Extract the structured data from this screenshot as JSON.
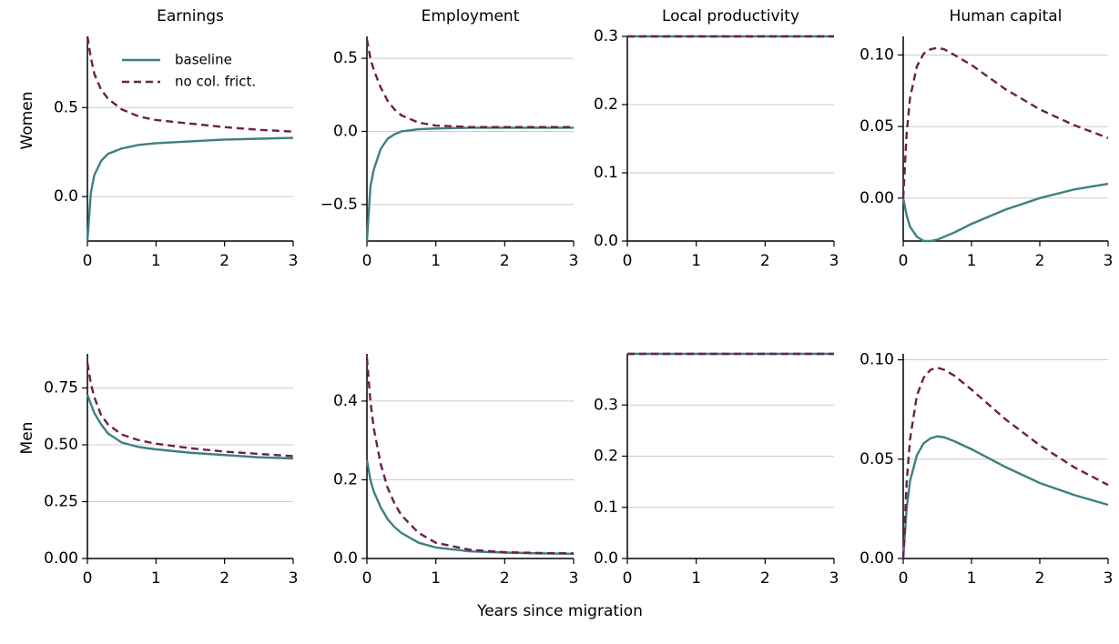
{
  "figure": {
    "xlabel": "Years since migration",
    "legend": [
      {
        "label": "baseline",
        "style": "solid",
        "color": "#3f7f7f"
      },
      {
        "label": "no col. frict.",
        "style": "dashed",
        "color": "#6d1f4b"
      }
    ],
    "legend_placement": "upper-center of top-left panel",
    "grid": "horizontal",
    "column_titles": [
      "Earnings",
      "Employment",
      "Local productivity",
      "Human capital"
    ],
    "row_labels": [
      "Women",
      "Men"
    ]
  },
  "chart_data": [
    {
      "type": "line",
      "title": "Earnings",
      "row_label": "Women",
      "xlim": [
        0,
        3
      ],
      "ylim": [
        -0.25,
        0.9
      ],
      "xticks": [
        0,
        1,
        2,
        3
      ],
      "yticks": [
        0.0,
        0.5
      ],
      "ytick_labels": [
        "0.0",
        "0.5"
      ],
      "series": [
        {
          "name": "baseline",
          "x": [
            0,
            0.05,
            0.1,
            0.2,
            0.3,
            0.5,
            0.75,
            1,
            1.5,
            2,
            2.5,
            3
          ],
          "y": [
            -0.25,
            0.02,
            0.12,
            0.2,
            0.24,
            0.27,
            0.29,
            0.3,
            0.31,
            0.32,
            0.325,
            0.33
          ]
        },
        {
          "name": "no col. frict.",
          "x": [
            0,
            0.05,
            0.1,
            0.2,
            0.3,
            0.5,
            0.75,
            1,
            1.5,
            2,
            2.5,
            3
          ],
          "y": [
            0.9,
            0.78,
            0.69,
            0.6,
            0.55,
            0.49,
            0.45,
            0.43,
            0.41,
            0.39,
            0.375,
            0.365
          ]
        }
      ]
    },
    {
      "type": "line",
      "title": "Employment",
      "row_label": "Women",
      "xlim": [
        0,
        3
      ],
      "ylim": [
        -0.75,
        0.65
      ],
      "xticks": [
        0,
        1,
        2,
        3
      ],
      "yticks": [
        -0.5,
        0.0,
        0.5
      ],
      "ytick_labels": [
        "−0.5",
        "0.0",
        "0.5"
      ],
      "series": [
        {
          "name": "baseline",
          "x": [
            0,
            0.05,
            0.1,
            0.2,
            0.3,
            0.4,
            0.5,
            0.75,
            1,
            1.5,
            2,
            2.5,
            3
          ],
          "y": [
            -0.75,
            -0.38,
            -0.26,
            -0.12,
            -0.05,
            -0.02,
            0.0,
            0.015,
            0.02,
            0.025,
            0.025,
            0.025,
            0.025
          ]
        },
        {
          "name": "no col. frict.",
          "x": [
            0,
            0.05,
            0.1,
            0.2,
            0.3,
            0.4,
            0.5,
            0.75,
            1,
            1.5,
            2,
            2.5,
            3
          ],
          "y": [
            0.63,
            0.5,
            0.42,
            0.3,
            0.21,
            0.15,
            0.11,
            0.06,
            0.04,
            0.03,
            0.03,
            0.03,
            0.03
          ]
        }
      ]
    },
    {
      "type": "line",
      "title": "Local productivity",
      "row_label": "Women",
      "xlim": [
        0,
        3
      ],
      "ylim": [
        0,
        0.3
      ],
      "xticks": [
        0,
        1,
        2,
        3
      ],
      "yticks": [
        0.0,
        0.1,
        0.2,
        0.3
      ],
      "ytick_labels": [
        "0.0",
        "0.1",
        "0.2",
        "0.3"
      ],
      "series": [
        {
          "name": "baseline",
          "x": [
            0,
            3
          ],
          "y": [
            0.3,
            0.3
          ]
        },
        {
          "name": "no col. frict.",
          "x": [
            0,
            3
          ],
          "y": [
            0.3,
            0.3
          ]
        }
      ]
    },
    {
      "type": "line",
      "title": "Human capital",
      "row_label": "Women",
      "xlim": [
        0,
        3
      ],
      "ylim": [
        -0.03,
        0.113
      ],
      "xticks": [
        0,
        1,
        2,
        3
      ],
      "yticks": [
        0.0,
        0.05,
        0.1
      ],
      "ytick_labels": [
        "0.00",
        "0.05",
        "0.10"
      ],
      "series": [
        {
          "name": "baseline",
          "x": [
            0,
            0.05,
            0.1,
            0.2,
            0.3,
            0.4,
            0.5,
            0.75,
            1,
            1.5,
            2,
            2.5,
            3
          ],
          "y": [
            0.0,
            -0.012,
            -0.02,
            -0.027,
            -0.03,
            -0.03,
            -0.029,
            -0.024,
            -0.018,
            -0.008,
            0.0,
            0.006,
            0.01
          ]
        },
        {
          "name": "no col. frict.",
          "x": [
            0,
            0.05,
            0.1,
            0.2,
            0.3,
            0.4,
            0.5,
            0.6,
            0.75,
            1,
            1.5,
            2,
            2.5,
            3
          ],
          "y": [
            0.0,
            0.045,
            0.07,
            0.092,
            0.101,
            0.104,
            0.105,
            0.104,
            0.1,
            0.093,
            0.076,
            0.062,
            0.051,
            0.042
          ]
        }
      ]
    },
    {
      "type": "line",
      "title": "",
      "row_label": "Men",
      "xlim": [
        0,
        3
      ],
      "ylim": [
        0,
        0.9
      ],
      "xticks": [
        0,
        1,
        2,
        3
      ],
      "yticks": [
        0.0,
        0.25,
        0.5,
        0.75
      ],
      "ytick_labels": [
        "0.00",
        "0.25",
        "0.50",
        "0.75"
      ],
      "series": [
        {
          "name": "baseline",
          "x": [
            0,
            0.05,
            0.1,
            0.2,
            0.3,
            0.5,
            0.75,
            1,
            1.5,
            2,
            2.5,
            3
          ],
          "y": [
            0.72,
            0.68,
            0.64,
            0.59,
            0.55,
            0.51,
            0.49,
            0.48,
            0.465,
            0.455,
            0.445,
            0.44
          ]
        },
        {
          "name": "no col. frict.",
          "x": [
            0,
            0.05,
            0.1,
            0.2,
            0.3,
            0.5,
            0.75,
            1,
            1.5,
            2,
            2.5,
            3
          ],
          "y": [
            0.86,
            0.77,
            0.71,
            0.63,
            0.59,
            0.545,
            0.52,
            0.505,
            0.485,
            0.47,
            0.46,
            0.45
          ]
        }
      ]
    },
    {
      "type": "line",
      "title": "",
      "row_label": "Men",
      "xlim": [
        0,
        3
      ],
      "ylim": [
        0,
        0.52
      ],
      "xticks": [
        0,
        1,
        2,
        3
      ],
      "yticks": [
        0.0,
        0.2,
        0.4
      ],
      "ytick_labels": [
        "0.0",
        "0.2",
        "0.4"
      ],
      "series": [
        {
          "name": "baseline",
          "x": [
            0,
            0.05,
            0.1,
            0.2,
            0.3,
            0.4,
            0.5,
            0.75,
            1,
            1.5,
            2,
            2.5,
            3
          ],
          "y": [
            0.25,
            0.2,
            0.17,
            0.13,
            0.1,
            0.08,
            0.065,
            0.04,
            0.028,
            0.018,
            0.015,
            0.013,
            0.012
          ]
        },
        {
          "name": "no col. frict.",
          "x": [
            0,
            0.05,
            0.1,
            0.2,
            0.3,
            0.4,
            0.5,
            0.75,
            1,
            1.5,
            2,
            2.5,
            3
          ],
          "y": [
            0.51,
            0.4,
            0.33,
            0.24,
            0.18,
            0.14,
            0.11,
            0.065,
            0.04,
            0.022,
            0.016,
            0.014,
            0.013
          ]
        }
      ]
    },
    {
      "type": "line",
      "title": "",
      "row_label": "Men",
      "xlim": [
        0,
        3
      ],
      "ylim": [
        0,
        0.4
      ],
      "xticks": [
        0,
        1,
        2,
        3
      ],
      "yticks": [
        0.0,
        0.1,
        0.2,
        0.3
      ],
      "ytick_labels": [
        "0.0",
        "0.1",
        "0.2",
        "0.3"
      ],
      "series": [
        {
          "name": "baseline",
          "x": [
            0,
            3
          ],
          "y": [
            0.4,
            0.4
          ]
        },
        {
          "name": "no col. frict.",
          "x": [
            0,
            3
          ],
          "y": [
            0.4,
            0.4
          ]
        }
      ]
    },
    {
      "type": "line",
      "title": "",
      "row_label": "Men",
      "xlim": [
        0,
        3
      ],
      "ylim": [
        0,
        0.103
      ],
      "xticks": [
        0,
        1,
        2,
        3
      ],
      "yticks": [
        0.0,
        0.05,
        0.1
      ],
      "ytick_labels": [
        "0.00",
        "0.05",
        "0.10"
      ],
      "series": [
        {
          "name": "baseline",
          "x": [
            0,
            0.05,
            0.1,
            0.2,
            0.3,
            0.4,
            0.5,
            0.6,
            0.75,
            1,
            1.5,
            2,
            2.5,
            3
          ],
          "y": [
            0.0,
            0.025,
            0.039,
            0.052,
            0.058,
            0.0605,
            0.0615,
            0.061,
            0.059,
            0.055,
            0.046,
            0.038,
            0.032,
            0.027
          ]
        },
        {
          "name": "no col. frict.",
          "x": [
            0,
            0.05,
            0.1,
            0.2,
            0.3,
            0.4,
            0.5,
            0.6,
            0.75,
            1,
            1.5,
            2,
            2.5,
            3
          ],
          "y": [
            0.0,
            0.038,
            0.06,
            0.082,
            0.091,
            0.095,
            0.096,
            0.095,
            0.092,
            0.085,
            0.07,
            0.057,
            0.046,
            0.037
          ]
        }
      ]
    }
  ]
}
